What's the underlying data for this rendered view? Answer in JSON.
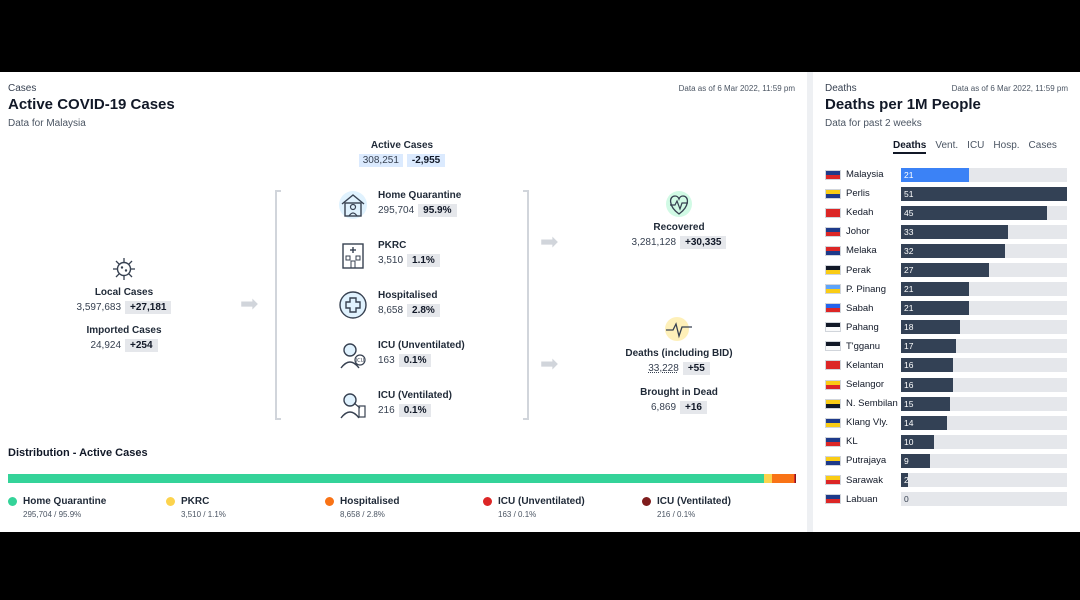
{
  "cases_panel": {
    "eyebrow": "Cases",
    "title": "Active COVID-19 Cases",
    "subtitle": "Data for Malaysia",
    "as_of": "Data as of 6 Mar 2022, 11:59 pm",
    "active": {
      "label": "Active Cases",
      "value": "308,251",
      "change": "-2,955"
    },
    "local": {
      "label": "Local Cases",
      "value": "3,597,683",
      "change": "+27,181"
    },
    "imported": {
      "label": "Imported Cases",
      "value": "24,924",
      "change": "+254"
    },
    "home_quarantine": {
      "label": "Home Quarantine",
      "value": "295,704",
      "pct": "95.9%"
    },
    "pkrc": {
      "label": "PKRC",
      "value": "3,510",
      "pct": "1.1%"
    },
    "hospitalised": {
      "label": "Hospitalised",
      "value": "8,658",
      "pct": "2.8%"
    },
    "icu_unvent": {
      "label": "ICU (Unventilated)",
      "value": "163",
      "pct": "0.1%"
    },
    "icu_vent": {
      "label": "ICU (Ventilated)",
      "value": "216",
      "pct": "0.1%"
    },
    "recovered": {
      "label": "Recovered",
      "value": "3,281,128",
      "change": "+30,335"
    },
    "deaths": {
      "label": "Deaths (including BID)",
      "value": "33,228",
      "change": "+55"
    },
    "bid": {
      "label": "Brought in Dead",
      "value": "6,869",
      "change": "+16"
    },
    "distribution": {
      "title": "Distribution - Active Cases",
      "segments": [
        {
          "name": "Home Quarantine",
          "value": "295,704 / 95.9%",
          "fraction": 0.959,
          "color": "#34d399"
        },
        {
          "name": "PKRC",
          "value": "3,510 / 1.1%",
          "fraction": 0.011,
          "color": "#fcd34d"
        },
        {
          "name": "Hospitalised",
          "value": "8,658 / 2.8%",
          "fraction": 0.028,
          "color": "#f97316"
        },
        {
          "name": "ICU (Unventilated)",
          "value": "163 / 0.1%",
          "fraction": 0.001,
          "color": "#dc2626"
        },
        {
          "name": "ICU (Ventilated)",
          "value": "216 / 0.1%",
          "fraction": 0.001,
          "color": "#7f1d1d"
        }
      ]
    }
  },
  "deaths_panel": {
    "eyebrow": "Deaths",
    "title": "Deaths per 1M People",
    "subtitle": "Data for past 2 weeks",
    "as_of": "Data as of 6 Mar 2022, 11:59 pm",
    "tabs": [
      "Deaths",
      "Vent.",
      "ICU",
      "Hosp.",
      "Cases"
    ],
    "active_tab": "Deaths",
    "max": 51,
    "states": [
      {
        "name": "Malaysia",
        "value": 21,
        "highlight": true,
        "flag": [
          "#1e3a8a",
          "#dc2626"
        ]
      },
      {
        "name": "Perlis",
        "value": 51,
        "flag": [
          "#facc15",
          "#1e3a8a"
        ]
      },
      {
        "name": "Kedah",
        "value": 45,
        "flag": [
          "#dc2626",
          "#dc2626"
        ]
      },
      {
        "name": "Johor",
        "value": 33,
        "flag": [
          "#1e3a8a",
          "#dc2626"
        ]
      },
      {
        "name": "Melaka",
        "value": 32,
        "flag": [
          "#dc2626",
          "#1e3a8a"
        ]
      },
      {
        "name": "Perak",
        "value": 27,
        "flag": [
          "#111827",
          "#facc15"
        ]
      },
      {
        "name": "P. Pinang",
        "value": 21,
        "flag": [
          "#60a5fa",
          "#facc15"
        ]
      },
      {
        "name": "Sabah",
        "value": 21,
        "flag": [
          "#2563eb",
          "#dc2626"
        ]
      },
      {
        "name": "Pahang",
        "value": 18,
        "flag": [
          "#111827",
          "#f9fafb"
        ]
      },
      {
        "name": "T'gganu",
        "value": 17,
        "flag": [
          "#111827",
          "#f9fafb"
        ]
      },
      {
        "name": "Kelantan",
        "value": 16,
        "flag": [
          "#dc2626",
          "#dc2626"
        ]
      },
      {
        "name": "Selangor",
        "value": 16,
        "flag": [
          "#facc15",
          "#dc2626"
        ]
      },
      {
        "name": "N. Sembilan",
        "value": 15,
        "flag": [
          "#facc15",
          "#111827"
        ]
      },
      {
        "name": "Klang Vly.",
        "value": 14,
        "flag": [
          "#1e3a8a",
          "#facc15"
        ]
      },
      {
        "name": "KL",
        "value": 10,
        "flag": [
          "#1e3a8a",
          "#dc2626"
        ]
      },
      {
        "name": "Putrajaya",
        "value": 9,
        "flag": [
          "#facc15",
          "#1e3a8a"
        ]
      },
      {
        "name": "Sarawak",
        "value": 2,
        "flag": [
          "#facc15",
          "#dc2626"
        ]
      },
      {
        "name": "Labuan",
        "value": 0,
        "flag": [
          "#1e3a8a",
          "#dc2626"
        ]
      }
    ]
  }
}
